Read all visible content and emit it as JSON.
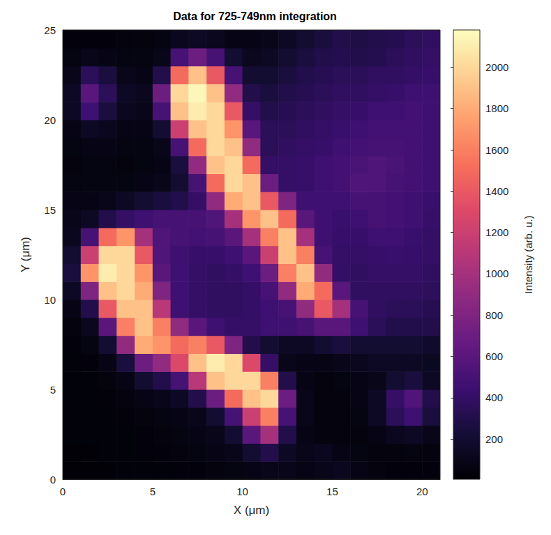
{
  "chart_data": {
    "type": "heatmap",
    "title": "Data for 725-749nm integration",
    "x_label": "X (μm)",
    "y_label": "Y (μm)",
    "xlim": [
      0,
      21
    ],
    "ylim": [
      0,
      25
    ],
    "xticks": [
      0,
      5,
      10,
      15,
      20
    ],
    "yticks": [
      0,
      5,
      10,
      15,
      20,
      25
    ],
    "x": [
      0.5,
      1.5,
      2.5,
      3.5,
      4.5,
      5.5,
      6.5,
      7.5,
      8.5,
      9.5,
      10.5,
      11.5,
      12.5,
      13.5,
      14.5,
      15.5,
      16.5,
      17.5,
      18.5,
      19.5,
      20.5
    ],
    "y": [
      0.5,
      1.5,
      2.5,
      3.5,
      4.5,
      5.5,
      6.5,
      7.5,
      8.5,
      9.5,
      10.5,
      11.5,
      12.5,
      13.5,
      14.5,
      15.5,
      16.5,
      17.5,
      18.5,
      19.5,
      20.5,
      21.5,
      22.5,
      23.5,
      24.5
    ],
    "values": [
      [
        20,
        20,
        20,
        30,
        30,
        30,
        40,
        40,
        50,
        60,
        80,
        100,
        100,
        80,
        100,
        120,
        80,
        50,
        40,
        40,
        40
      ],
      [
        20,
        20,
        30,
        30,
        40,
        40,
        50,
        60,
        80,
        100,
        200,
        300,
        150,
        100,
        120,
        80,
        60,
        50,
        50,
        60,
        50
      ],
      [
        30,
        30,
        30,
        30,
        40,
        50,
        60,
        80,
        100,
        200,
        600,
        1000,
        300,
        80,
        50,
        50,
        50,
        80,
        120,
        150,
        100
      ],
      [
        30,
        30,
        30,
        40,
        50,
        60,
        80,
        100,
        200,
        500,
        1200,
        1600,
        500,
        100,
        50,
        50,
        60,
        150,
        350,
        450,
        250
      ],
      [
        30,
        30,
        40,
        50,
        80,
        100,
        150,
        300,
        700,
        1500,
        1900,
        2000,
        700,
        100,
        50,
        50,
        80,
        150,
        400,
        550,
        300
      ],
      [
        30,
        30,
        50,
        80,
        200,
        300,
        500,
        1100,
        1900,
        2000,
        2000,
        1600,
        300,
        80,
        50,
        60,
        80,
        100,
        200,
        250,
        150
      ],
      [
        30,
        40,
        80,
        250,
        700,
        900,
        1300,
        1900,
        2100,
        2000,
        1300,
        400,
        100,
        80,
        80,
        100,
        120,
        150,
        150,
        150,
        130
      ],
      [
        40,
        60,
        200,
        900,
        1800,
        1700,
        1500,
        1600,
        1400,
        800,
        300,
        200,
        150,
        150,
        200,
        250,
        200,
        200,
        200,
        200,
        180
      ],
      [
        50,
        120,
        600,
        1600,
        1900,
        1600,
        900,
        600,
        450,
        400,
        400,
        450,
        450,
        500,
        600,
        600,
        450,
        350,
        300,
        300,
        300
      ],
      [
        80,
        300,
        1400,
        1900,
        1900,
        1100,
        450,
        400,
        380,
        380,
        400,
        450,
        500,
        900,
        1400,
        1000,
        500,
        380,
        350,
        350,
        330
      ],
      [
        150,
        800,
        1900,
        2000,
        1800,
        800,
        450,
        400,
        380,
        380,
        400,
        500,
        900,
        1800,
        1500,
        600,
        380,
        380,
        380,
        380,
        360
      ],
      [
        250,
        1700,
        2100,
        2000,
        1700,
        600,
        450,
        400,
        380,
        400,
        450,
        700,
        1600,
        1900,
        900,
        400,
        380,
        400,
        400,
        400,
        380
      ],
      [
        200,
        1200,
        2000,
        2000,
        1400,
        550,
        450,
        420,
        420,
        450,
        600,
        1200,
        1900,
        1600,
        500,
        400,
        400,
        420,
        430,
        420,
        400
      ],
      [
        120,
        500,
        1500,
        1700,
        1000,
        550,
        500,
        480,
        500,
        600,
        1000,
        1600,
        1900,
        1000,
        450,
        420,
        420,
        450,
        450,
        430,
        400
      ],
      [
        100,
        150,
        300,
        400,
        450,
        500,
        500,
        500,
        550,
        1000,
        1700,
        1900,
        1500,
        600,
        450,
        430,
        450,
        500,
        480,
        450,
        420
      ],
      [
        80,
        80,
        100,
        150,
        200,
        250,
        300,
        400,
        900,
        1800,
        1900,
        1400,
        800,
        450,
        450,
        450,
        500,
        500,
        480,
        450,
        430
      ],
      [
        60,
        60,
        60,
        60,
        80,
        100,
        200,
        500,
        1500,
        2000,
        1900,
        700,
        400,
        420,
        450,
        480,
        550,
        550,
        500,
        480,
        450
      ],
      [
        50,
        60,
        60,
        50,
        60,
        80,
        250,
        900,
        1900,
        2000,
        1500,
        400,
        400,
        420,
        450,
        480,
        520,
        550,
        520,
        480,
        450
      ],
      [
        60,
        80,
        80,
        60,
        60,
        100,
        500,
        1500,
        2000,
        1900,
        900,
        350,
        380,
        400,
        420,
        450,
        480,
        500,
        500,
        480,
        450
      ],
      [
        80,
        150,
        120,
        80,
        80,
        200,
        1200,
        1900,
        2000,
        1700,
        600,
        350,
        350,
        380,
        400,
        430,
        450,
        480,
        480,
        480,
        450
      ],
      [
        150,
        450,
        250,
        120,
        100,
        500,
        1900,
        2100,
        2000,
        1400,
        400,
        300,
        330,
        350,
        380,
        400,
        420,
        450,
        450,
        480,
        450
      ],
      [
        150,
        600,
        350,
        150,
        120,
        700,
        2000,
        2150,
        1900,
        900,
        300,
        250,
        300,
        330,
        350,
        380,
        380,
        400,
        420,
        450,
        450
      ],
      [
        100,
        350,
        250,
        100,
        80,
        300,
        1500,
        1900,
        1400,
        500,
        200,
        200,
        250,
        300,
        330,
        350,
        350,
        380,
        380,
        400,
        420
      ],
      [
        60,
        100,
        80,
        60,
        60,
        100,
        500,
        700,
        500,
        200,
        120,
        150,
        200,
        250,
        300,
        320,
        300,
        320,
        350,
        380,
        400
      ],
      [
        40,
        40,
        40,
        50,
        50,
        60,
        120,
        150,
        120,
        80,
        80,
        100,
        150,
        200,
        250,
        300,
        280,
        300,
        320,
        350,
        380
      ]
    ],
    "colorbar_label": "Intensity (arb. u.)",
    "colorbar_lim": [
      5,
      2180
    ],
    "colorbar_ticks": [
      200,
      400,
      600,
      800,
      1000,
      1200,
      1400,
      1600,
      1800,
      2000
    ]
  }
}
